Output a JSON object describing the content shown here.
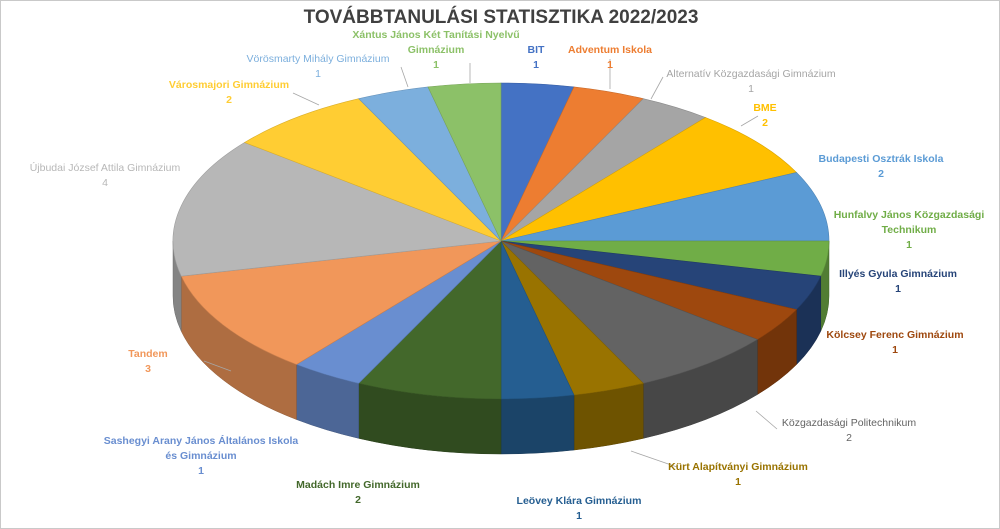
{
  "chart_data": {
    "type": "pie",
    "title": "TOVÁBBTANULÁSI STATISZTIKA 2022/2023",
    "slices": [
      {
        "label": "BIT",
        "value": 1,
        "color": "#4472C4"
      },
      {
        "label": "Adventum Iskola",
        "value": 1,
        "color": "#ED7D31"
      },
      {
        "label": "Alternatív Közgazdasági Gimnázium",
        "value": 1,
        "color": "#A5A5A5"
      },
      {
        "label": "BME",
        "value": 2,
        "color": "#FFC000"
      },
      {
        "label": "Budapesti Osztrák Iskola",
        "value": 2,
        "color": "#5B9BD5"
      },
      {
        "label": "Hunfalvy János Közgazdasági Technikum",
        "value": 1,
        "color": "#70AD47"
      },
      {
        "label": "Illyés Gyula Gimnázium",
        "value": 1,
        "color": "#264478"
      },
      {
        "label": "Kölcsey Ferenc Gimnázium",
        "value": 1,
        "color": "#9E480E"
      },
      {
        "label": "Közgazdasági Politechnikum",
        "value": 2,
        "color": "#636363"
      },
      {
        "label": "Kürt Alapítványi Gimnázium",
        "value": 1,
        "color": "#997300"
      },
      {
        "label": "Leövey Klára Gimnázium",
        "value": 1,
        "color": "#255E91"
      },
      {
        "label": "Madách Imre Gimnázium",
        "value": 2,
        "color": "#43682B"
      },
      {
        "label": "Sashegyi Arany János Általános Iskola és Gimnázium",
        "value": 1,
        "color": "#698ED0"
      },
      {
        "label": "Tandem",
        "value": 3,
        "color": "#F1975A"
      },
      {
        "label": "Újbudai József Attila Gimnázium",
        "value": 4,
        "color": "#B7B7B7"
      },
      {
        "label": "Városmajori Gimnázium",
        "value": 2,
        "color": "#FFCD33"
      },
      {
        "label": "Vörösmarty Mihály Gimnázium",
        "value": 1,
        "color": "#7CAFDD"
      },
      {
        "label": "Xántus János Két Tanítási Nyelvű Gimnázium",
        "value": 1,
        "color": "#8CC168"
      }
    ],
    "legend": "none",
    "data_labels": "category name and value, outside with leader lines"
  }
}
